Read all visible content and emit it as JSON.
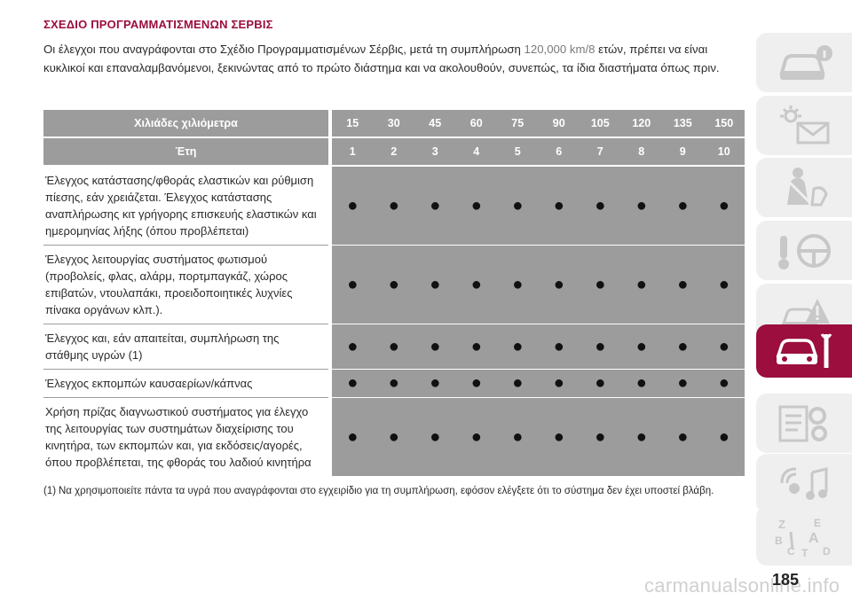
{
  "section_title": "ΣΧΕΔΙΟ ΠΡΟΓΡΑΜΜΑΤΙΣΜΕΝΩΝ ΣΕΡΒΙΣ",
  "intro": {
    "part1": "Οι έλεγχοι που αναγράφονται στο Σχέδιο Προγραμματισμένων Σέρβις, μετά τη συμπλήρωση ",
    "highlight": "120,000 km/8",
    "part2": " ετών, πρέπει να είναι κυκλικοί και επαναλαμβανόμενοι, ξεκινώντας από το πρώτο διάστημα και να ακολουθούν, συνεπώς, τα ίδια διαστήματα όπως πριν."
  },
  "table": {
    "header_km_label": "Χιλιάδες χιλιόμετρα",
    "header_years_label": "Έτη",
    "km": [
      "15",
      "30",
      "45",
      "60",
      "75",
      "90",
      "105",
      "120",
      "135",
      "150"
    ],
    "years": [
      "1",
      "2",
      "3",
      "4",
      "5",
      "6",
      "7",
      "8",
      "9",
      "10"
    ],
    "rows": [
      {
        "label": "Έλεγχος κατάστασης/φθοράς ελαστικών και ρύθμιση πίεσης, εάν χρειάζεται. Έλεγχος κατάστασης αναπλήρωσης κιτ γρήγορης επισκευής ελαστικών και ημερομηνίας λήξης (όπου προβλέπεται)",
        "marks": [
          "●",
          "●",
          "●",
          "●",
          "●",
          "●",
          "●",
          "●",
          "●",
          "●"
        ]
      },
      {
        "label": "Έλεγχος λειτουργίας συστήματος φωτισμού (προβολείς, φλας, αλάρμ, πορτμπαγκάζ, χώρος επιβατών, ντουλαπάκι, προειδοποιητικές λυχνίες πίνακα οργάνων κλπ.).",
        "marks": [
          "●",
          "●",
          "●",
          "●",
          "●",
          "●",
          "●",
          "●",
          "●",
          "●"
        ]
      },
      {
        "label": "Έλεγχος και, εάν απαιτείται, συμπλήρωση της στάθμης υγρών (1)",
        "marks": [
          "●",
          "●",
          "●",
          "●",
          "●",
          "●",
          "●",
          "●",
          "●",
          "●"
        ]
      },
      {
        "label": "Έλεγχος εκπομπών καυσαερίων/κάπνας",
        "marks": [
          "●",
          "●",
          "●",
          "●",
          "●",
          "●",
          "●",
          "●",
          "●",
          "●"
        ]
      },
      {
        "label": "Χρήση πρίζας διαγνωστικού συστήματος για έλεγχο της λειτουργίας των συστημάτων διαχείρισης του κινητήρα, των εκπομπών και, για εκδόσεις/αγορές, όπου προβλέπεται, της φθοράς του λαδιού κινητήρα",
        "marks": [
          "●",
          "●",
          "●",
          "●",
          "●",
          "●",
          "●",
          "●",
          "●",
          "●"
        ]
      }
    ]
  },
  "footnote": {
    "number": "(1)",
    "text": "Να χρησιμοποιείτε πάντα τα υγρά που αναγράφονται στο εγχειρίδιο για τη συμπλήρωση, εφόσον ελέγξετε ότι το σύστημα δεν έχει υποστεί βλάβη."
  },
  "page_number": "185",
  "watermark": "carmanualsonline.info",
  "chapter_tabs": [
    {
      "icon": "car-info-icon",
      "active": false
    },
    {
      "icon": "dashboard-lights-icon",
      "active": false
    },
    {
      "icon": "safety-seatbelt-icon",
      "active": false
    },
    {
      "icon": "starting-driving-icon",
      "active": false
    },
    {
      "icon": "emergency-warning-icon",
      "active": false
    },
    {
      "icon": "maintenance-car-wrench-icon",
      "active": true
    },
    {
      "icon": "technical-data-icon",
      "active": false
    },
    {
      "icon": "multimedia-icon",
      "active": false
    },
    {
      "icon": "index-letters-icon",
      "active": false
    }
  ],
  "colors": {
    "accent": "#9b0e3e",
    "table_grey": "#9c9c9c",
    "tab_grey": "#efefef",
    "tab_icon_grey": "#c8c8c8"
  }
}
